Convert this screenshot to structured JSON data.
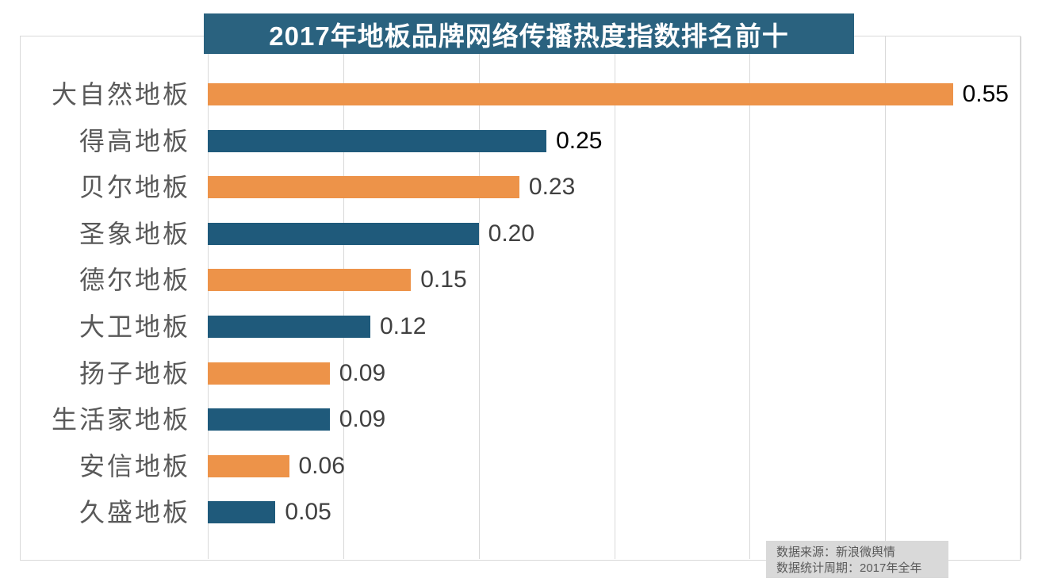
{
  "title": "2017年地板品牌网络传播热度指数排名前十",
  "source": {
    "line1": "数据来源：新浪微舆情",
    "line2": "数据统计周期：2017年全年"
  },
  "colors": {
    "title_bg": "#2A627F",
    "bar_orange": "#ED9349",
    "bar_teal": "#1F5A7B",
    "gridline": "#D9D9D9",
    "frame_border": "#D9D9D9",
    "category_text": "#595959",
    "source_bg": "#D9D9D9",
    "source_text": "#595959"
  },
  "chart_data": {
    "type": "bar",
    "orientation": "horizontal",
    "title": "2017年地板品牌网络传播热度指数排名前十",
    "categories": [
      "大自然地板",
      "得高地板",
      "贝尔地板",
      "圣象地板",
      "德尔地板",
      "大卫地板",
      "扬子地板",
      "生活家地板",
      "安信地板",
      "久盛地板"
    ],
    "values": [
      0.55,
      0.25,
      0.23,
      0.2,
      0.15,
      0.12,
      0.09,
      0.09,
      0.06,
      0.05
    ],
    "value_labels": [
      "0.55",
      "0.25",
      "0.23",
      "0.20",
      "0.15",
      "0.12",
      "0.09",
      "0.09",
      "0.06",
      "0.05"
    ],
    "value_label_colors": [
      "#000000",
      "#000000",
      "#404040",
      "#404040",
      "#404040",
      "#404040",
      "#404040",
      "#404040",
      "#404040",
      "#404040"
    ],
    "bar_color_pattern": [
      "#ED9349",
      "#1F5A7B"
    ],
    "xlabel": "",
    "ylabel": "",
    "xlim": [
      0,
      0.6
    ],
    "grid": "vertical gridlines every 0.1",
    "legend": "none",
    "data_source": "新浪微舆情",
    "period": "2017年全年"
  }
}
